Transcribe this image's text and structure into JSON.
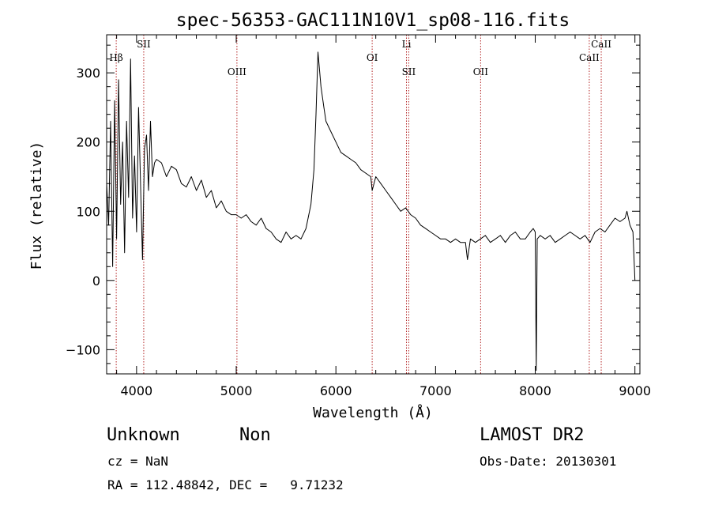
{
  "chart_data": {
    "type": "line",
    "title": "spec-56353-GAC111N10V1_sp08-116.fits",
    "xlabel": "Wavelength (Å)",
    "ylabel": "Flux (relative)",
    "xlim": [
      3700,
      9050
    ],
    "ylim": [
      -135,
      355
    ],
    "xticks": [
      4000,
      5000,
      6000,
      7000,
      8000,
      9000
    ],
    "yticks": [
      -100,
      0,
      100,
      200,
      300
    ],
    "grid": false,
    "line_color": "#000000",
    "marker_color": "#b22222",
    "spectral_lines": [
      {
        "label": "Hβ",
        "x": 3796,
        "row": 1
      },
      {
        "label": "SII",
        "x": 4072,
        "row": 0
      },
      {
        "label": "OIII",
        "x": 5007,
        "row": 2
      },
      {
        "label": "OI",
        "x": 6364,
        "row": 1
      },
      {
        "label": "Li",
        "x": 6708,
        "row": 0
      },
      {
        "label": "SII",
        "x": 6731,
        "row": 2
      },
      {
        "label": "OII",
        "x": 7452,
        "row": 2
      },
      {
        "label": "CaII",
        "x": 8542,
        "row": 1
      },
      {
        "label": "CaII",
        "x": 8662,
        "row": 0
      }
    ],
    "series": [
      {
        "x": [
          3700,
          3720,
          3740,
          3760,
          3780,
          3800,
          3820,
          3840,
          3860,
          3880,
          3900,
          3920,
          3940,
          3960,
          3980,
          4000,
          4020,
          4040,
          4060,
          4080,
          4100,
          4120,
          4140,
          4160,
          4180,
          4200,
          4250,
          4300,
          4350,
          4400,
          4450,
          4500,
          4550,
          4600,
          4650,
          4700,
          4750,
          4800,
          4850,
          4900,
          4950,
          5000,
          5050,
          5100,
          5150,
          5200,
          5250,
          5300,
          5350,
          5400,
          5450,
          5500,
          5550,
          5600,
          5650,
          5700,
          5750,
          5780,
          5800,
          5820,
          5850,
          5880,
          5900,
          5950,
          6000,
          6050,
          6100,
          6150,
          6200,
          6250,
          6300,
          6350,
          6364,
          6400,
          6450,
          6500,
          6550,
          6600,
          6650,
          6700,
          6750,
          6800,
          6850,
          6900,
          6950,
          7000,
          7050,
          7100,
          7150,
          7200,
          7250,
          7300,
          7320,
          7350,
          7400,
          7450,
          7500,
          7550,
          7600,
          7650,
          7700,
          7750,
          7800,
          7850,
          7900,
          7950,
          7980,
          8000,
          8010,
          8020,
          8050,
          8100,
          8150,
          8200,
          8250,
          8300,
          8350,
          8400,
          8450,
          8500,
          8550,
          8600,
          8650,
          8700,
          8750,
          8800,
          8850,
          8900,
          8920,
          8950,
          8980,
          9000
        ],
        "y": [
          140,
          80,
          230,
          20,
          260,
          60,
          290,
          110,
          200,
          40,
          230,
          120,
          320,
          90,
          180,
          70,
          250,
          140,
          30,
          190,
          210,
          130,
          230,
          150,
          170,
          175,
          170,
          150,
          165,
          160,
          140,
          135,
          150,
          130,
          145,
          120,
          130,
          105,
          115,
          100,
          95,
          95,
          90,
          95,
          85,
          80,
          90,
          75,
          70,
          60,
          55,
          70,
          60,
          65,
          60,
          75,
          110,
          160,
          240,
          330,
          280,
          250,
          230,
          215,
          200,
          185,
          180,
          175,
          170,
          160,
          155,
          150,
          130,
          150,
          140,
          130,
          120,
          110,
          100,
          105,
          95,
          90,
          80,
          75,
          70,
          65,
          60,
          60,
          55,
          60,
          55,
          55,
          30,
          60,
          55,
          60,
          65,
          55,
          60,
          65,
          55,
          65,
          70,
          60,
          60,
          70,
          75,
          70,
          -130,
          60,
          65,
          60,
          65,
          55,
          60,
          65,
          70,
          65,
          60,
          65,
          55,
          70,
          75,
          70,
          80,
          90,
          85,
          90,
          100,
          80,
          70,
          0
        ]
      }
    ]
  },
  "footer": {
    "object_class": "Unknown",
    "object_subclass": "Non",
    "survey": "LAMOST DR2",
    "cz": "cz = NaN",
    "obs_date": "Obs-Date: 20130301",
    "coords": "RA = 112.48842, DEC =   9.71232"
  }
}
